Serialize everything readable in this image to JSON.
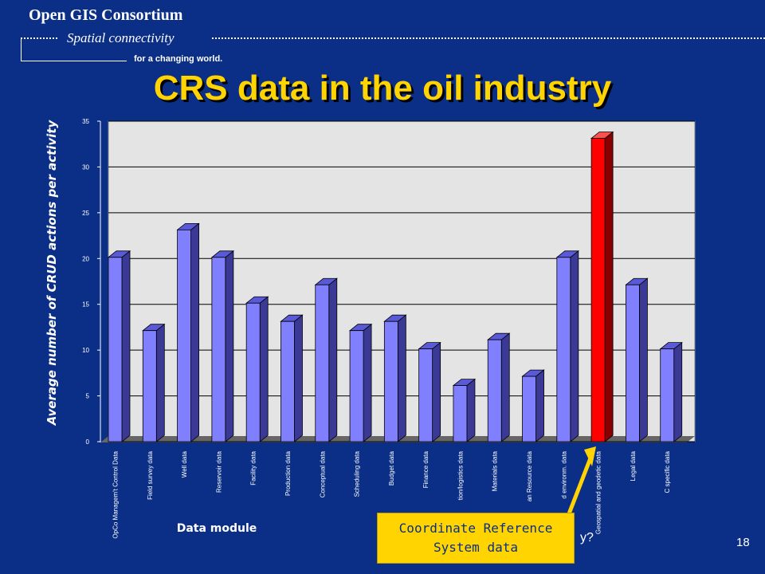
{
  "header": {
    "org": "Open GIS Consortium",
    "tagline": "Spatial connectivity",
    "tagline2": "for a changing world."
  },
  "slide": {
    "title": "CRS data in the oil industry",
    "page_number": "18",
    "callout_line1": "Coordinate Reference",
    "callout_line2": "System data",
    "trailing_text": "y?"
  },
  "colors": {
    "background": "#0b2f87",
    "title": "#ffd400",
    "bar": "#8080ff",
    "highlight_bar": "#ff0000",
    "callout": "#ffd400"
  },
  "chart_data": {
    "type": "bar",
    "title": "",
    "ylabel": "Average number of CRUD actions per activity",
    "xlabel": "Data module",
    "ylim": [
      0,
      35
    ],
    "yticks": [
      0,
      5,
      10,
      15,
      20,
      25,
      30,
      35
    ],
    "grid": true,
    "highlight_index": 14,
    "categories": [
      "OpCo Managem't Control Data",
      "Field survey data",
      "Well data",
      "Reservoir data",
      "Facility data",
      "Production data",
      "Conceptual data",
      "Scheduling data",
      "Budget data",
      "Finance data",
      "tion/logistics data",
      "Materials data",
      "an Resource data",
      "d environm. data",
      "Geospatial and geodetic data",
      "Legal data",
      "C specific data"
    ],
    "values": [
      21,
      13,
      24,
      21,
      16,
      14,
      18,
      13,
      14,
      11,
      7,
      12,
      8,
      21,
      34,
      18,
      11
    ]
  }
}
